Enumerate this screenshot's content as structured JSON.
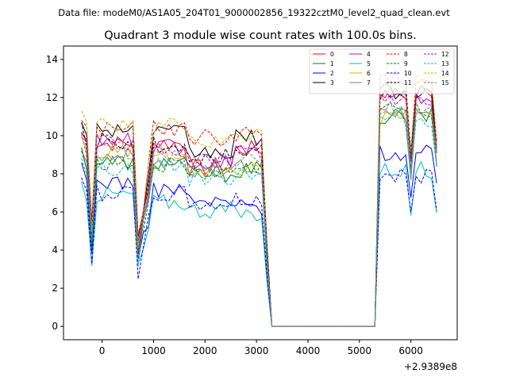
{
  "header": {
    "data_file": "Data file: modeM0/AS1A05_204T01_9000002856_19322cztM0_level2_quad_clean.evt"
  },
  "chart_data": {
    "type": "line",
    "title": "Quadrant 3 module wise count rates with 100.0s bins.",
    "xlabel": "",
    "ylabel": "",
    "x_offset_label": "+2.9389e8",
    "xlim": [
      -750,
      6900
    ],
    "ylim": [
      -0.7,
      14.7
    ],
    "xticks": [
      0,
      1000,
      2000,
      3000,
      4000,
      5000,
      6000
    ],
    "yticks": [
      0,
      2,
      4,
      6,
      8,
      10,
      12,
      14
    ],
    "grid": false,
    "legend": {
      "placement": "top-right",
      "columns": 4
    },
    "segments": [
      {
        "x_start": -400,
        "n": 37,
        "step": 100
      },
      {
        "x_start": 3300,
        "n": 20,
        "step": 100
      },
      {
        "x_start": 5300,
        "n": 13,
        "step": 100
      }
    ],
    "series": [
      {
        "name": "0",
        "color": "#ff0000",
        "dash": "solid",
        "base": [
          9.6,
          9.6,
          8.3,
          9.3,
          12.3
        ]
      },
      {
        "name": "1",
        "color": "#008000",
        "dash": "solid",
        "base": [
          8.6,
          8.6,
          8.0,
          8.2,
          11.0
        ]
      },
      {
        "name": "2",
        "color": "#0000ff",
        "dash": "solid",
        "base": [
          7.6,
          7.2,
          6.5,
          6.3,
          9.1
        ]
      },
      {
        "name": "3",
        "color": "#000000",
        "dash": "solid",
        "base": [
          10.4,
          10.1,
          9.1,
          9.9,
          12.3
        ]
      },
      {
        "name": "4",
        "color": "#bf00bf",
        "dash": "solid",
        "base": [
          9.7,
          9.4,
          8.7,
          9.5,
          12.0
        ]
      },
      {
        "name": "5",
        "color": "#00bfbf",
        "dash": "solid",
        "base": [
          6.9,
          6.5,
          6.1,
          5.9,
          8.2
        ]
      },
      {
        "name": "6",
        "color": "#bfbf00",
        "dash": "solid",
        "base": [
          9.1,
          8.9,
          7.9,
          8.3,
          10.9
        ]
      },
      {
        "name": "7",
        "color": "#808080",
        "dash": "solid",
        "base": [
          9.0,
          8.7,
          8.0,
          8.4,
          11.1
        ]
      },
      {
        "name": "8",
        "color": "#ff0000",
        "dash": "dashed",
        "base": [
          10.4,
          10.4,
          9.9,
          10.1,
          13.0
        ]
      },
      {
        "name": "9",
        "color": "#008000",
        "dash": "dashed",
        "base": [
          8.6,
          8.4,
          8.0,
          8.3,
          11.4
        ]
      },
      {
        "name": "10",
        "color": "#0000ff",
        "dash": "dashed",
        "base": [
          7.0,
          6.9,
          6.4,
          6.6,
          7.9
        ]
      },
      {
        "name": "11",
        "color": "#000000",
        "dash": "dashed",
        "base": [
          9.7,
          9.5,
          8.9,
          9.4,
          12.3
        ]
      },
      {
        "name": "12",
        "color": "#bf00bf",
        "dash": "dashed",
        "base": [
          9.6,
          9.2,
          8.7,
          9.1,
          11.8
        ]
      },
      {
        "name": "13",
        "color": "#00bfbf",
        "dash": "dashed",
        "base": [
          8.3,
          8.5,
          7.8,
          8.1,
          10.9
        ]
      },
      {
        "name": "14",
        "color": "#bfbf00",
        "dash": "dashed",
        "base": [
          10.6,
          10.5,
          9.6,
          10.0,
          12.8
        ]
      },
      {
        "name": "15",
        "color": "#808080",
        "dash": "dashed",
        "base": [
          9.2,
          9.0,
          8.4,
          8.8,
          11.4
        ]
      }
    ]
  }
}
